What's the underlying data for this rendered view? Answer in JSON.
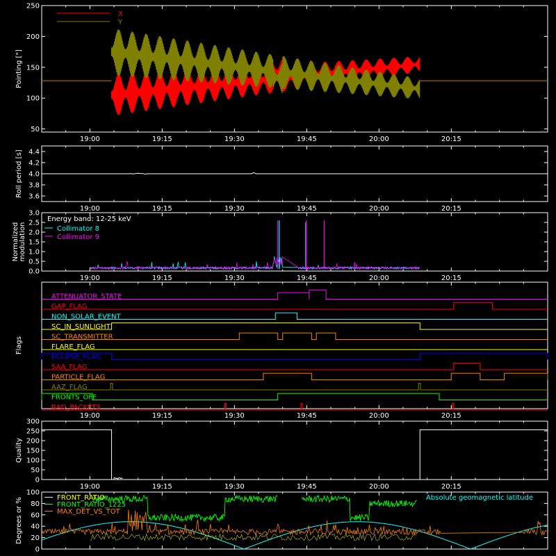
{
  "time_axis": {
    "ticks": [
      "19:00",
      "19:15",
      "19:30",
      "19:45",
      "20:00",
      "20:15"
    ],
    "tick_minutes": [
      1140,
      1155,
      1170,
      1185,
      1200,
      1215
    ],
    "range_minutes": [
      1130,
      1235
    ]
  },
  "chart_data": [
    {
      "type": "line",
      "id": "pointing",
      "ylabel": "Pointing [\"]",
      "ylim": [
        45,
        250
      ],
      "yticks": [
        50,
        100,
        150,
        200,
        250
      ],
      "legend": {
        "placement": "top-left"
      },
      "series": [
        {
          "name": "X",
          "color": "#ff0000",
          "baseline": 128,
          "active": [
            1144.5,
            1208.5
          ],
          "center_start": 105,
          "center_end": 155,
          "amp_start": 40,
          "amp_end": 15
        },
        {
          "name": "Y",
          "color": "#808000",
          "baseline": 128,
          "active": [
            1144.5,
            1208.5
          ],
          "center_start": 175,
          "center_end": 115,
          "amp_start": 45,
          "amp_end": 20
        }
      ]
    },
    {
      "type": "line",
      "id": "roll",
      "ylabel": "Roll period [s]",
      "ylim": [
        3.5,
        4.5
      ],
      "yticks": [
        "3.6",
        "3.8",
        "4.0",
        "4.2",
        "4.4"
      ],
      "ytick_values": [
        3.6,
        3.8,
        4.0,
        4.2,
        4.4
      ],
      "series": [
        {
          "name": "",
          "color": "#ffffff",
          "level": 4.0,
          "range": [
            1130,
            1235
          ]
        }
      ]
    },
    {
      "type": "line",
      "id": "modulation",
      "ylabel_lines": [
        "Normalized",
        "modulation"
      ],
      "ylim": [
        0,
        3.0
      ],
      "yticks": [
        "0.0",
        "0.5",
        "1.0",
        "1.5",
        "2.0",
        "2.5",
        "3.0"
      ],
      "ytick_values": [
        0,
        0.5,
        1.0,
        1.5,
        2.0,
        2.5,
        3.0
      ],
      "legend_title": "Energy band: 12-25 keV",
      "series": [
        {
          "name": "Collimator 8",
          "color": "#00ffff",
          "range": [
            1140,
            1208.5
          ],
          "spikes": [
            [
              1179.3,
              2.6
            ],
            [
              1184.8,
              2.5
            ]
          ]
        },
        {
          "name": "Collimator 9",
          "color": "#ff00ff",
          "range": [
            1140,
            1208.5
          ],
          "spikes": [
            [
              1179.0,
              2.6
            ],
            [
              1184.9,
              2.6
            ],
            [
              1188.6,
              2.6
            ]
          ]
        }
      ]
    },
    {
      "type": "step",
      "id": "flags",
      "ylabel": "Flags",
      "flags": [
        {
          "name": "ATTENUATOR_STATE",
          "color": "#ff00ff",
          "high": [
            [
              1179,
              1185.5
            ],
            [
              1185.5,
              1189
            ]
          ],
          "levels": [
            1,
            2
          ]
        },
        {
          "name": "GAP_FLAG",
          "color": "#ff0000",
          "high": [
            [
              1215.5,
              1223.5
            ]
          ]
        },
        {
          "name": "NON_SOLAR_EVENT",
          "color": "#00ffff",
          "high": [
            [
              1178.5,
              1183
            ]
          ]
        },
        {
          "name": "SC_IN_SUNLIGHT",
          "color": "#ffff00",
          "high": [
            [
              1144.5,
              1208.5
            ]
          ]
        },
        {
          "name": "SC_TRANSMITTER",
          "color": "#ff8000",
          "high": [
            [
              1171,
              1179
            ],
            [
              1180,
              1186
            ],
            [
              1187,
              1191
            ]
          ]
        },
        {
          "name": "FLARE_FLAG",
          "color": "#ffff00",
          "high": []
        },
        {
          "name": "ECLIPSE_FLAG",
          "color": "#0000ff",
          "high": [
            [
              1130,
              1144.5
            ],
            [
              1208.5,
              1235
            ]
          ]
        },
        {
          "name": "SAA_FLAG",
          "color": "#ff0000",
          "high": [
            [
              1215.5,
              1221
            ]
          ]
        },
        {
          "name": "PARTICLE_FLAG",
          "color": "#ff8000",
          "high": [
            [
              1176,
              1186
            ],
            [
              1215,
              1221
            ],
            [
              1226,
              1235
            ]
          ]
        },
        {
          "name": "AAZ_FLAG",
          "color": "#808000",
          "high": [
            [
              1144.3,
              1144.7
            ],
            [
              1208.2,
              1208.6
            ]
          ]
        },
        {
          "name": "FRONTS_OFF",
          "color": "#00ff00",
          "high": [
            [
              1130,
              1140.5
            ],
            [
              1179,
              1212.5
            ]
          ]
        },
        {
          "name": "BAD_PACKETS",
          "color": "#ff0000",
          "high": [
            [
              1168,
              1168.3
            ],
            [
              1183.8,
              1184.1
            ],
            [
              1215.2,
              1215.5
            ]
          ]
        }
      ]
    },
    {
      "type": "line",
      "id": "quality",
      "ylabel": "Quality",
      "ylim": [
        0,
        300
      ],
      "yticks": [
        0,
        50,
        100,
        150,
        200,
        250,
        300
      ],
      "series": [
        {
          "name": "",
          "color": "#ffffff",
          "high": 256,
          "segments": [
            [
              1130,
              1144.5
            ],
            [
              1208.5,
              1235
            ]
          ]
        }
      ]
    },
    {
      "type": "line",
      "id": "geomag",
      "ylabel": "Degrees or %",
      "ylim": [
        0,
        100
      ],
      "yticks": [
        0,
        20,
        40,
        60,
        80,
        100
      ],
      "legend_right": "Absolute geomagnetic latitude",
      "series": [
        {
          "name": "FRONT_RATIO",
          "color": "#ffff00"
        },
        {
          "name": "FRONT_RATIO_1225",
          "color": "#00ff00"
        },
        {
          "name": "MAX_DET_VS_TOT",
          "color": "#ff8000"
        },
        {
          "name": "Absolute geomagnetic latitude",
          "color": "#00ffff"
        }
      ]
    }
  ]
}
